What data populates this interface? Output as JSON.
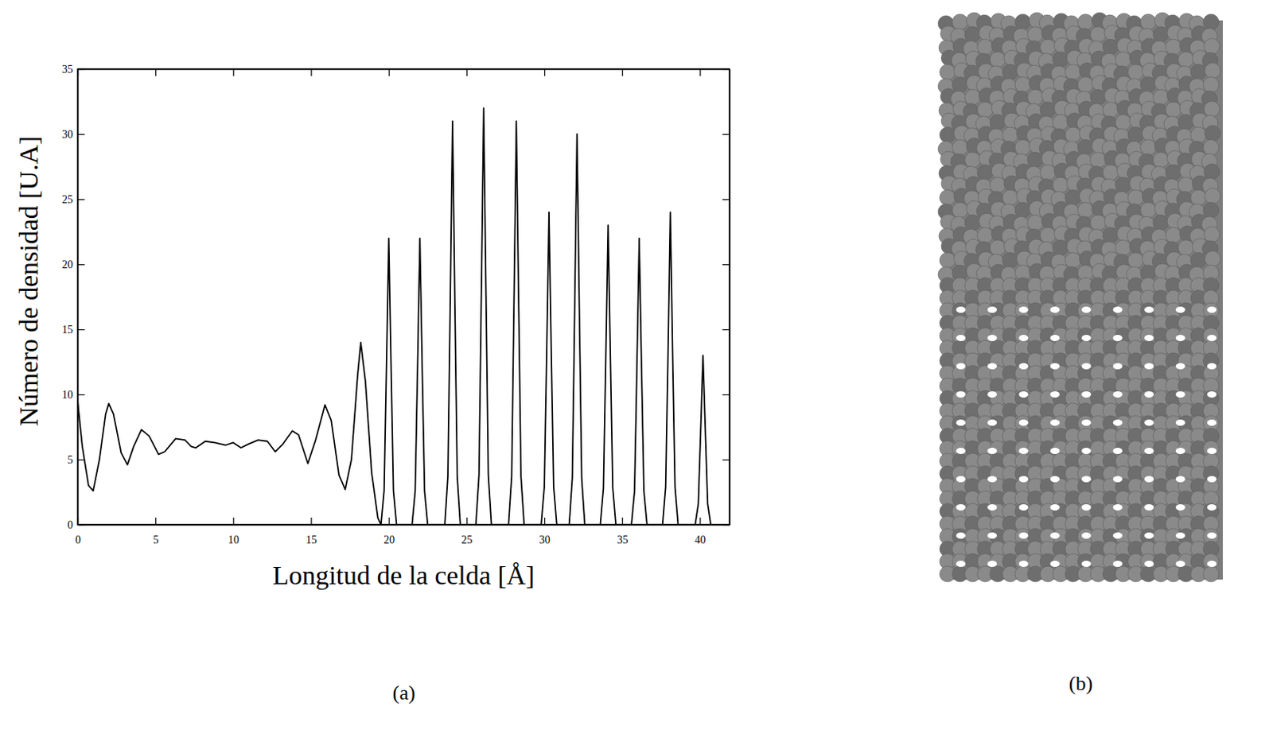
{
  "chart_data": {
    "type": "line",
    "panel_label": "(a)",
    "x_label": "Longitud de la celda [Å]",
    "y_label": "Número de densidad [U.A]",
    "xlim": [
      0,
      41.9
    ],
    "ylim": [
      0,
      35
    ],
    "xticks": [
      0,
      5,
      10,
      15,
      20,
      25,
      30,
      35,
      40
    ],
    "yticks": [
      0,
      5,
      10,
      15,
      20,
      25,
      30,
      35
    ],
    "x": [
      0,
      0.3,
      0.7,
      1.0,
      1.4,
      1.8,
      2.0,
      2.3,
      2.8,
      3.2,
      3.6,
      4.1,
      4.6,
      5.2,
      5.6,
      6.3,
      6.9,
      7.3,
      7.6,
      8.2,
      8.8,
      9.5,
      10.0,
      10.5,
      11.0,
      11.6,
      12.2,
      12.7,
      13.2,
      13.8,
      14.2,
      14.8,
      15.3,
      15.9,
      16.3,
      16.8,
      17.2,
      17.6,
      18.0,
      18.2,
      18.5,
      18.9,
      19.3,
      19.5,
      19.7,
      19.85,
      20.0,
      20.15,
      20.3,
      20.5,
      21.5,
      21.7,
      21.85,
      22.0,
      22.15,
      22.3,
      22.5,
      23.6,
      23.8,
      23.95,
      24.1,
      24.25,
      24.4,
      24.6,
      25.6,
      25.8,
      25.95,
      26.1,
      26.25,
      26.4,
      26.6,
      27.7,
      27.9,
      28.05,
      28.2,
      28.35,
      28.5,
      28.7,
      29.8,
      30.0,
      30.15,
      30.3,
      30.45,
      30.6,
      30.8,
      31.6,
      31.8,
      31.95,
      32.1,
      32.25,
      32.4,
      32.6,
      33.6,
      33.8,
      33.95,
      34.1,
      34.25,
      34.4,
      34.6,
      35.6,
      35.8,
      35.95,
      36.1,
      36.25,
      36.4,
      36.6,
      37.6,
      37.8,
      37.95,
      38.1,
      38.25,
      38.4,
      38.6,
      39.7,
      39.9,
      40.05,
      40.2,
      40.35,
      40.5,
      40.7
    ],
    "series": [
      {
        "color": "#000000",
        "values": [
          9.5,
          6,
          3,
          2.6,
          5,
          8.5,
          9.3,
          8.5,
          5.5,
          4.6,
          6,
          7.3,
          6.8,
          5.4,
          5.6,
          6.6,
          6.5,
          6.0,
          5.9,
          6.4,
          6.3,
          6.1,
          6.3,
          5.9,
          6.2,
          6.5,
          6.4,
          5.6,
          6.2,
          7.2,
          6.9,
          4.7,
          6.5,
          9.2,
          8.0,
          3.8,
          2.7,
          5,
          11.5,
          14,
          11,
          4,
          0.5,
          0,
          2.6,
          12,
          22,
          12,
          2.6,
          0,
          0,
          2.6,
          12,
          22,
          12,
          2.6,
          0,
          0,
          3.7,
          17,
          31,
          17,
          3.7,
          0,
          0,
          3.8,
          17.6,
          32,
          17.6,
          3.8,
          0,
          0,
          3.7,
          17,
          31,
          17,
          3.7,
          0,
          0,
          2.9,
          13,
          24,
          13,
          2.9,
          0,
          0,
          3.6,
          16.5,
          30,
          16.5,
          3.6,
          0,
          0,
          2.8,
          12.7,
          23,
          12.7,
          2.8,
          0,
          0,
          2.6,
          12,
          22,
          12,
          2.6,
          0,
          0,
          2.9,
          13,
          24,
          13,
          2.9,
          0,
          0,
          1.6,
          7.2,
          13,
          7.2,
          1.6,
          0
        ]
      }
    ]
  },
  "image": {
    "label": "(b)"
  }
}
